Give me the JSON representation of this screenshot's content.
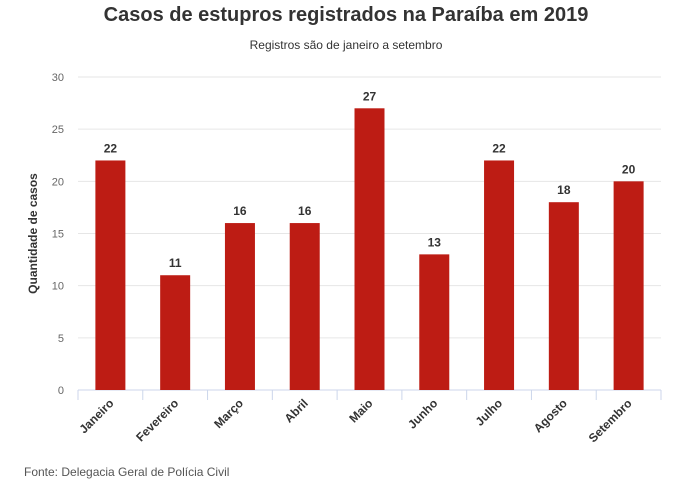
{
  "chart_data": {
    "type": "bar",
    "title": "Casos de estupros registrados na Paraíba em 2019",
    "subtitle": "Registros são de janeiro a setembro",
    "xlabel": "",
    "ylabel": "Quantidade de casos",
    "categories": [
      "Janeiro",
      "Fevereiro",
      "Março",
      "Abril",
      "Maio",
      "Junho",
      "Julho",
      "Agosto",
      "Setembro"
    ],
    "values": [
      22,
      11,
      16,
      16,
      27,
      13,
      22,
      18,
      20
    ],
    "ylim": [
      0,
      30
    ],
    "yticks": [
      0,
      5,
      10,
      15,
      20,
      25,
      30
    ],
    "grid": true,
    "bar_color": "#bd1c14",
    "source": "Fonte: Delegacia Geral de Polícia Civil"
  }
}
